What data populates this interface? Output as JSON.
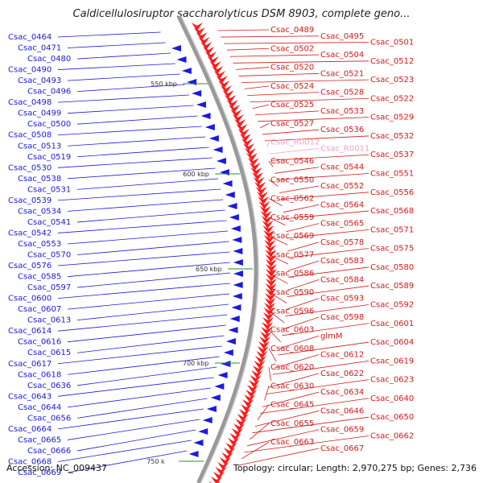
{
  "title": "Caldicellulosiruptor saccharolyticus DSM 8903, complete geno...",
  "footer": {
    "accession": "Accession: NC_009437",
    "summary": "Topology: circular; Length: 2,970,275 bp; Genes: 2,736"
  },
  "colors": {
    "left_labels": "#1a1ad6",
    "right_labels": "#d11a1a",
    "rna_labels": "#f0a0c8",
    "backbone": "#999999"
  },
  "scale_marks": [
    "550 kbp",
    "600 kbp",
    "650 kbp",
    "700 kbp",
    "750 k"
  ],
  "left_genes": [
    "Csac_0464",
    "Csac_0471",
    "Csac_0480",
    "Csac_0490",
    "Csac_0493",
    "Csac_0496",
    "Csac_0498",
    "Csac_0499",
    "Csac_0500",
    "Csac_0508",
    "Csac_0513",
    "Csac_0519",
    "Csac_0530",
    "Csac_0538",
    "Csac_0531",
    "Csac_0539",
    "Csac_0534",
    "Csac_0541",
    "Csac_0542",
    "Csac_0553",
    "Csac_0570",
    "Csac_0576",
    "Csac_0585",
    "Csac_0597",
    "Csac_0600",
    "Csac_0607",
    "Csac_0613",
    "Csac_0614",
    "Csac_0616",
    "Csac_0615",
    "Csac_0617",
    "Csac_0618",
    "Csac_0636",
    "Csac_0643",
    "Csac_0644",
    "Csac_0656",
    "Csac_0664",
    "Csac_0665",
    "Csac_0666",
    "Csac_0668",
    "Csac_0669"
  ],
  "right_genes": [
    "Csac_0489",
    "Csac_0495",
    "Csac_0501",
    "Csac_0502",
    "Csac_0504",
    "Csac_0512",
    "Csac_0520",
    "Csac_0521",
    "Csac_0523",
    "Csac_0524",
    "Csac_0528",
    "Csac_0522",
    "Csac_0525",
    "Csac_0533",
    "Csac_0529",
    "Csac_0527",
    "Csac_0536",
    "Csac_0532",
    "Csac_R0012",
    "Csac_R0011",
    "Csac_0537",
    "Csac_0546",
    "Csac_0544",
    "Csac_0551",
    "Csac_0550",
    "Csac_0552",
    "Csac_0556",
    "Csac_0562",
    "Csac_0564",
    "Csac_0568",
    "Csac_0559",
    "Csac_0565",
    "Csac_0571",
    "Csac_0569",
    "Csac_0578",
    "Csac_0575",
    "Csac_0577",
    "Csac_0583",
    "Csac_0580",
    "Csac_0586",
    "Csac_0584",
    "Csac_0589",
    "Csac_0590",
    "Csac_0593",
    "Csac_0592",
    "Csac_0596",
    "Csac_0598",
    "Csac_0601",
    "Csac_0603",
    "glmM",
    "Csac_0604",
    "Csac_0608",
    "Csac_0612",
    "Csac_0619",
    "Csac_0620",
    "Csac_0622",
    "Csac_0623",
    "Csac_0630",
    "Csac_0634",
    "Csac_0640",
    "Csac_0645",
    "Csac_0646",
    "Csac_0650",
    "Csac_0655",
    "Csac_0659",
    "Csac_0662",
    "Csac_0663",
    "Csac_0667"
  ]
}
